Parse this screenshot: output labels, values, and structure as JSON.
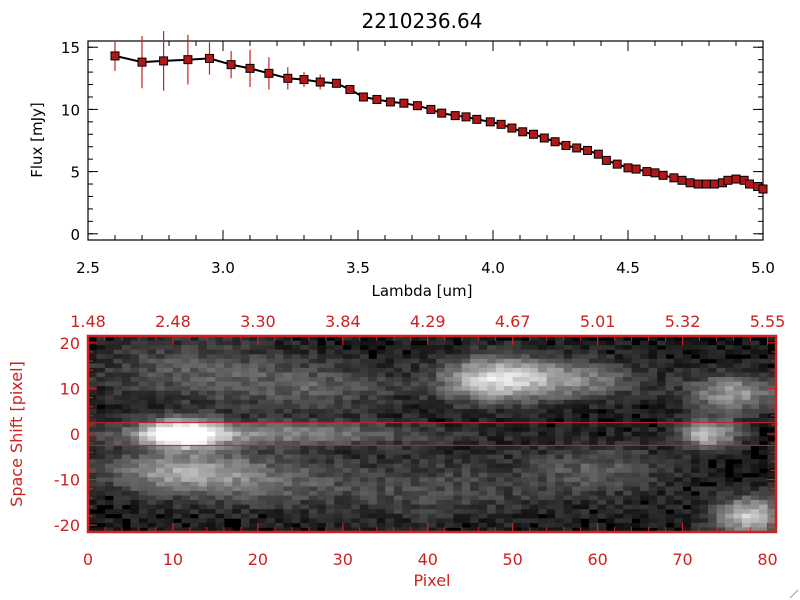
{
  "title": "2210236.64",
  "colors": {
    "axis": "#000000",
    "accent": "#cc2222",
    "spectrum_line": "#000000",
    "marker_fill": "#b01818"
  },
  "chart_data": [
    {
      "type": "line",
      "title": "2210236.64",
      "xlabel": "Lambda [um]",
      "ylabel": "Flux [mJy]",
      "xlim": [
        2.5,
        5.0
      ],
      "ylim": [
        -0.5,
        15.5
      ],
      "x_ticks": [
        "2.5",
        "3.0",
        "3.5",
        "4.0",
        "4.5",
        "5.0"
      ],
      "y_ticks": [
        "0",
        "5",
        "10",
        "15"
      ],
      "grid": false,
      "series": [
        {
          "x": [
            2.6,
            2.7,
            2.78,
            2.87,
            2.95,
            3.03,
            3.1,
            3.17,
            3.24,
            3.3,
            3.36,
            3.42,
            3.47,
            3.52,
            3.57,
            3.62,
            3.67,
            3.72,
            3.77,
            3.81,
            3.86,
            3.9,
            3.94,
            3.99,
            4.03,
            4.07,
            4.11,
            4.15,
            4.19,
            4.23,
            4.27,
            4.31,
            4.35,
            4.39,
            4.42,
            4.46,
            4.5,
            4.53,
            4.57,
            4.6,
            4.63,
            4.67,
            4.7,
            4.73,
            4.76,
            4.79,
            4.82,
            4.85,
            4.87,
            4.9,
            4.93,
            4.95,
            4.98,
            5.0
          ],
          "y": [
            14.3,
            13.8,
            13.9,
            14.0,
            14.1,
            13.6,
            13.3,
            12.9,
            12.5,
            12.4,
            12.2,
            12.1,
            11.6,
            11.0,
            10.8,
            10.6,
            10.5,
            10.3,
            10.0,
            9.7,
            9.5,
            9.4,
            9.2,
            9.0,
            8.8,
            8.5,
            8.2,
            8.0,
            7.7,
            7.4,
            7.1,
            6.9,
            6.7,
            6.4,
            5.9,
            5.6,
            5.3,
            5.2,
            5.0,
            4.9,
            4.7,
            4.5,
            4.3,
            4.1,
            4.0,
            4.0,
            4.0,
            4.1,
            4.3,
            4.4,
            4.3,
            4.0,
            3.8,
            3.6
          ],
          "err": [
            1.2,
            2.1,
            2.4,
            2.0,
            1.3,
            1.1,
            1.5,
            1.3,
            0.9,
            0.6,
            0.6,
            0.3,
            0,
            0,
            0,
            0,
            0,
            0,
            0,
            0,
            0,
            0,
            0,
            0,
            0,
            0,
            0,
            0,
            0,
            0,
            0,
            0,
            0,
            0,
            0,
            0,
            0,
            0,
            0,
            0,
            0,
            0,
            0,
            0,
            0,
            0,
            0,
            0,
            0,
            0,
            0,
            0,
            0,
            0
          ]
        }
      ]
    },
    {
      "type": "heatmap",
      "xlabel": "Pixel",
      "ylabel": "Space Shift [pixel]",
      "xlim": [
        0,
        81
      ],
      "ylim": [
        -21.5,
        21.5
      ],
      "x_ticks": [
        "0",
        "10",
        "20",
        "30",
        "40",
        "50",
        "60",
        "70",
        "80"
      ],
      "y_ticks": [
        "-20",
        "-10",
        "0",
        "10",
        "20"
      ],
      "top_ticks": [
        "1.48",
        "2.48",
        "3.30",
        "3.84",
        "4.29",
        "4.67",
        "5.01",
        "5.32",
        "5.55"
      ],
      "aperture": [
        -2.5,
        2.5
      ],
      "features": [
        {
          "x": 11,
          "y": 0,
          "amp": 1.0,
          "sx": 3.2,
          "sy": 2.2
        },
        {
          "x": 20,
          "y": 0,
          "amp": 0.42,
          "sx": 14,
          "sy": 1.8
        },
        {
          "x": 48,
          "y": 12,
          "amp": 0.75,
          "sx": 4.5,
          "sy": 3.5
        },
        {
          "x": 58,
          "y": 12,
          "amp": 0.4,
          "sx": 5,
          "sy": 3
        },
        {
          "x": 76,
          "y": 9,
          "amp": 0.5,
          "sx": 4,
          "sy": 3
        },
        {
          "x": 73,
          "y": 0,
          "amp": 0.65,
          "sx": 2.5,
          "sy": 2.2
        },
        {
          "x": 10,
          "y": -8,
          "amp": 0.4,
          "sx": 6,
          "sy": 3
        },
        {
          "x": 18,
          "y": -10,
          "amp": 0.3,
          "sx": 8,
          "sy": 4
        },
        {
          "x": 78,
          "y": -18,
          "amp": 0.7,
          "sx": 3,
          "sy": 3
        },
        {
          "x": 12,
          "y": 14,
          "amp": 0.25,
          "sx": 8,
          "sy": 5
        },
        {
          "x": 27,
          "y": 10,
          "amp": 0.25,
          "sx": 7,
          "sy": 4
        },
        {
          "x": 60,
          "y": -8,
          "amp": 0.25,
          "sx": 6,
          "sy": 4
        },
        {
          "x": 40,
          "y": -12,
          "amp": 0.2,
          "sx": 10,
          "sy": 5
        }
      ]
    }
  ]
}
